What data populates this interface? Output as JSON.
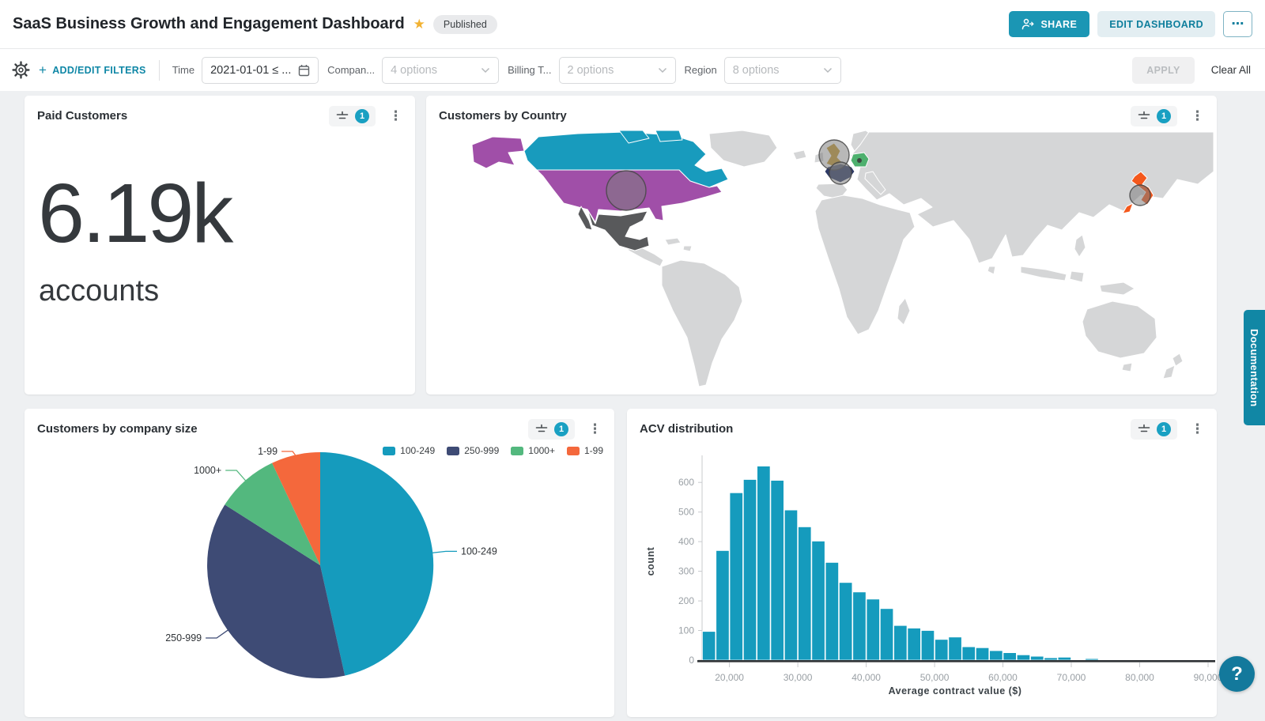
{
  "header": {
    "title": "SaaS Business Growth and Engagement Dashboard",
    "status_badge": "Published",
    "share_label": "SHARE",
    "edit_label": "EDIT DASHBOARD"
  },
  "icons": {
    "star": "★",
    "more_ellipsis": "⋯",
    "kebab": "⋮"
  },
  "filter_bar": {
    "add_edit_label": "ADD/EDIT FILTERS",
    "plus": "+",
    "filters": [
      {
        "label": "Time",
        "value": "2021-01-01 ≤ ...",
        "type": "date"
      },
      {
        "label": "Compan...",
        "value": "4 options",
        "type": "select"
      },
      {
        "label": "Billing T...",
        "value": "2 options",
        "type": "select"
      },
      {
        "label": "Region",
        "value": "8 options",
        "type": "select"
      }
    ],
    "apply_label": "APPLY",
    "clear_all_label": "Clear All"
  },
  "cards": {
    "paid_customers": {
      "title": "Paid Customers",
      "filter_count": "1",
      "value": "6.19k",
      "unit": "accounts"
    },
    "customers_by_country": {
      "title": "Customers by Country",
      "filter_count": "1"
    },
    "company_size": {
      "title": "Customers by company size",
      "filter_count": "1"
    },
    "acv": {
      "title": "ACV distribution",
      "filter_count": "1"
    }
  },
  "side": {
    "documentation_label": "Documentation",
    "help_label": "?"
  },
  "chart_data": [
    {
      "id": "customers-by-country-map",
      "type": "map",
      "title": "Customers by Country",
      "countries": [
        {
          "key": "canada",
          "name": "Canada",
          "color": "#189bbd",
          "bubble": false
        },
        {
          "key": "usa",
          "name": "United States",
          "color": "#a04fa8",
          "bubble": true
        },
        {
          "key": "mexico",
          "name": "Mexico",
          "color": "#58595b",
          "bubble": false
        },
        {
          "key": "uk",
          "name": "United Kingdom",
          "color": "#c6992e",
          "bubble": true
        },
        {
          "key": "france",
          "name": "France",
          "color": "#2e3a66",
          "bubble": true
        },
        {
          "key": "germany",
          "name": "Germany",
          "color": "#4eb06e",
          "bubble": true
        },
        {
          "key": "japan",
          "name": "Japan",
          "color": "#f4581c",
          "bubble": true
        }
      ],
      "base_land_color": "#d5d6d7",
      "ocean_color": "#ffffff",
      "bubble_color": "#7d7d7d"
    },
    {
      "id": "customers-by-company-size",
      "type": "pie",
      "title": "Customers by company size",
      "categories": [
        "100-249",
        "250-999",
        "1000+",
        "1-99"
      ],
      "values": [
        46.5,
        37.5,
        9,
        7
      ],
      "value_unit": "percent (estimated from chart)",
      "colors": [
        "#159bbd",
        "#3e4b75",
        "#53b87e",
        "#f4683c"
      ],
      "legend_position": "top-right",
      "start_angle_deg": 0,
      "direction": "clockwise"
    },
    {
      "id": "acv-distribution",
      "type": "bar",
      "title": "ACV distribution",
      "xlabel": "Average contract value ($)",
      "ylabel": "count",
      "bin_start": 16000,
      "bin_width": 2000,
      "values": [
        97,
        370,
        565,
        610,
        655,
        607,
        507,
        450,
        402,
        330,
        262,
        230,
        206,
        174,
        117,
        108,
        100,
        70,
        78,
        45,
        42,
        32,
        25,
        18,
        13,
        8,
        10,
        2,
        5
      ],
      "y_ticks": [
        0,
        100,
        200,
        300,
        400,
        500,
        600
      ],
      "x_ticks": [
        {
          "v": 20000,
          "label": "20,000"
        },
        {
          "v": 30000,
          "label": "30,000"
        },
        {
          "v": 40000,
          "label": "40,000"
        },
        {
          "v": 50000,
          "label": "50,000"
        },
        {
          "v": 60000,
          "label": "60,000"
        },
        {
          "v": 70000,
          "label": "70,000"
        },
        {
          "v": 80000,
          "label": "80,000"
        },
        {
          "v": 90000,
          "label": "90,000"
        }
      ],
      "x_range": [
        16000,
        90000
      ],
      "ylim": [
        0,
        670
      ],
      "color": "#159bbd",
      "grid": false
    }
  ]
}
